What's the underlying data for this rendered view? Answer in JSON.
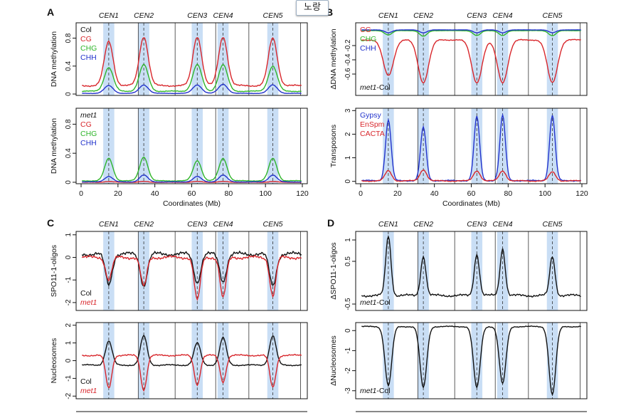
{
  "popup_label": "노랑",
  "colors": {
    "black": "#111111",
    "red": "#d8262b",
    "green": "#2fb52a",
    "blue": "#2233cc",
    "centromere": "#c9def5"
  },
  "centromeres": {
    "labels": [
      "CEN1",
      "CEN2",
      "CEN3",
      "CEN4",
      "CEN5"
    ],
    "positions_mb": [
      15,
      34,
      63,
      77,
      104
    ]
  },
  "chart_data": [
    {
      "id": "A-top",
      "type": "line",
      "panel_letter": "A",
      "ylabel": "DNA methylation",
      "yticks": [
        0,
        0.4,
        0.8
      ],
      "ylim": [
        -0.02,
        1.02
      ],
      "xlim": [
        0,
        120
      ],
      "show_x_tick_labels": false,
      "xlabel": "",
      "legend": [
        {
          "text": "Col",
          "color": "#111111"
        },
        {
          "text": "CG",
          "color": "#d8262b"
        },
        {
          "text": "CHG",
          "color": "#2fb52a"
        },
        {
          "text": "CHH",
          "color": "#2233cc"
        }
      ],
      "series": [
        {
          "name": "CG",
          "color": "#d8262b",
          "base": 0.12,
          "peaks": [
            0.75,
            0.82,
            0.82,
            0.82,
            0.8
          ],
          "width": 2.4,
          "noise": 0.015
        },
        {
          "name": "CHG",
          "color": "#2fb52a",
          "base": 0.04,
          "peaks": [
            0.38,
            0.42,
            0.42,
            0.42,
            0.4
          ],
          "width": 2.4,
          "noise": 0.008
        },
        {
          "name": "CHH",
          "color": "#2233cc",
          "base": 0.01,
          "peaks": [
            0.12,
            0.13,
            0.13,
            0.14,
            0.13
          ],
          "width": 2.4,
          "noise": 0.004
        }
      ]
    },
    {
      "id": "A-bottom",
      "type": "line",
      "ylabel": "DNA methylation",
      "yticks": [
        0,
        0.4,
        0.8
      ],
      "ylim": [
        -0.02,
        1.02
      ],
      "xlim": [
        0,
        120
      ],
      "show_x_tick_labels": true,
      "xticks": [
        0,
        20,
        40,
        60,
        80,
        100,
        120
      ],
      "xlabel": "Coordinates (Mb)",
      "legend": [
        {
          "text": "met1",
          "color": "#111111",
          "italic": true
        },
        {
          "text": "CG",
          "color": "#d8262b"
        },
        {
          "text": "CHG",
          "color": "#2fb52a"
        },
        {
          "text": "CHH",
          "color": "#2233cc"
        }
      ],
      "series": [
        {
          "name": "CG",
          "color": "#d8262b",
          "base": 0.0,
          "peaks": [
            0.01,
            0.01,
            0.01,
            0.01,
            0.01
          ],
          "width": 2.4,
          "noise": 0.003
        },
        {
          "name": "CHG",
          "color": "#2fb52a",
          "base": 0.02,
          "peaks": [
            0.33,
            0.35,
            0.3,
            0.33,
            0.33
          ],
          "width": 2.2,
          "noise": 0.006
        },
        {
          "name": "CHH",
          "color": "#2233cc",
          "base": 0.005,
          "peaks": [
            0.08,
            0.1,
            0.08,
            0.1,
            0.1
          ],
          "width": 2.2,
          "noise": 0.003
        }
      ]
    },
    {
      "id": "B-top",
      "type": "line",
      "panel_letter": "B",
      "ylabel": "ΔDNA methylation",
      "yticks": [
        -0.2,
        -0.4,
        -0.6
      ],
      "ylim": [
        -0.9,
        0.12
      ],
      "xlim": [
        0,
        120
      ],
      "show_x_tick_labels": false,
      "xlabel": "",
      "inner_label": [
        {
          "text": "met1",
          "italic": true
        },
        {
          "text": "-Col",
          "italic": false
        }
      ],
      "legend": [
        {
          "text": "CG",
          "color": "#d8262b"
        },
        {
          "text": "CHG",
          "color": "#2fb52a"
        },
        {
          "text": "CHH",
          "color": "#2233cc"
        }
      ],
      "series": [
        {
          "name": "CG",
          "color": "#d8262b",
          "base": -0.12,
          "peaks": [
            -0.62,
            -0.72,
            -0.72,
            -0.72,
            -0.72
          ],
          "width": 2.8,
          "noise": 0.01
        },
        {
          "name": "CHG",
          "color": "#2fb52a",
          "base": 0.01,
          "peaks": [
            -0.05,
            -0.07,
            -0.06,
            -0.06,
            -0.06
          ],
          "width": 2.0,
          "noise": 0.003
        },
        {
          "name": "CHH",
          "color": "#2233cc",
          "base": 0.02,
          "peaks": [
            -0.02,
            -0.02,
            -0.02,
            -0.02,
            -0.02
          ],
          "width": 2.0,
          "noise": 0.002
        }
      ]
    },
    {
      "id": "B-bottom",
      "type": "line",
      "ylabel": "Transposons",
      "yticks": [
        0,
        1,
        2,
        3
      ],
      "ylim": [
        -0.1,
        3.1
      ],
      "xlim": [
        0,
        120
      ],
      "show_x_tick_labels": true,
      "xticks": [
        0,
        20,
        40,
        60,
        80,
        100,
        120
      ],
      "xlabel": "Coordinates (Mb)",
      "legend": [
        {
          "text": "Gypsy",
          "color": "#2233cc"
        },
        {
          "text": "EnSpm",
          "color": "#d8262b"
        },
        {
          "text": "CACTA",
          "color": "#d8262b"
        }
      ],
      "series": [
        {
          "name": "Gypsy",
          "color": "#2233cc",
          "base": 0.03,
          "peaks": [
            2.6,
            2.3,
            2.75,
            2.8,
            2.8
          ],
          "width": 1.5,
          "noise": 0.03
        },
        {
          "name": "EnSpm",
          "color": "#d8262b",
          "base": 0.02,
          "peaks": [
            0.45,
            0.5,
            0.45,
            0.45,
            0.4
          ],
          "width": 1.8,
          "noise": 0.03
        }
      ]
    },
    {
      "id": "C-top",
      "type": "line",
      "panel_letter": "C",
      "ylabel": "SPO11-1-oligos",
      "yticks": [
        1,
        0,
        -1,
        -2
      ],
      "ylim": [
        -2.35,
        1.15
      ],
      "xlim": [
        0,
        120
      ],
      "show_x_tick_labels": false,
      "xlabel": "",
      "legend": [
        {
          "text": "Col",
          "color": "#111111"
        },
        {
          "text": "met1",
          "color": "#d8262b",
          "italic": true
        }
      ],
      "series": [
        {
          "name": "Col",
          "color": "#111111",
          "base": 0.15,
          "peaks": [
            -1.2,
            -1.25,
            -1.1,
            -1.05,
            -1.25
          ],
          "width": 1.8,
          "noise": 0.12
        },
        {
          "name": "met1",
          "color": "#d8262b",
          "base": 0.0,
          "peaks": [
            -1.0,
            -1.3,
            -1.9,
            -1.8,
            -1.7
          ],
          "width": 1.6,
          "noise": 0.1
        }
      ]
    },
    {
      "id": "C-bottom",
      "type": "line",
      "ylabel": "Nucleosomes",
      "yticks": [
        2,
        1,
        0,
        -1,
        -2
      ],
      "ylim": [
        -2.15,
        2.15
      ],
      "xlim": [
        0,
        120
      ],
      "show_x_tick_labels": false,
      "xlabel": "",
      "legend": [
        {
          "text": "Col",
          "color": "#111111"
        },
        {
          "text": "met1",
          "color": "#d8262b",
          "italic": true
        }
      ],
      "series": [
        {
          "name": "Col",
          "color": "#111111",
          "base": -0.25,
          "peaks": [
            1.1,
            1.4,
            1.0,
            1.3,
            1.4
          ],
          "width": 1.8,
          "noise": 0.05
        },
        {
          "name": "met1",
          "color": "#d8262b",
          "base": 0.3,
          "peaks": [
            -1.55,
            -1.65,
            -1.35,
            -1.2,
            -1.5
          ],
          "width": 1.6,
          "noise": 0.06
        }
      ]
    },
    {
      "id": "D-top",
      "type": "line",
      "panel_letter": "D",
      "ylabel": "ΔSPO11-1-oligos",
      "yticks": [
        1.0,
        0.5,
        -0.5
      ],
      "ylim": [
        -0.65,
        1.2
      ],
      "xlim": [
        0,
        120
      ],
      "show_x_tick_labels": false,
      "xlabel": "",
      "inner_label": [
        {
          "text": "met1",
          "italic": true
        },
        {
          "text": "-Col",
          "italic": false
        }
      ],
      "series": [
        {
          "name": "met1-Col",
          "color": "#111111",
          "base": -0.3,
          "peaks": [
            1.1,
            0.62,
            0.67,
            0.8,
            0.62
          ],
          "width": 1.4,
          "noise": 0.04
        }
      ]
    },
    {
      "id": "D-bottom",
      "type": "line",
      "ylabel": "ΔNucleosomes",
      "yticks": [
        0,
        -1,
        -2,
        -3
      ],
      "ylim": [
        -3.4,
        0.4
      ],
      "xlim": [
        0,
        120
      ],
      "show_x_tick_labels": false,
      "xlabel": "",
      "inner_label": [
        {
          "text": "met1",
          "italic": true
        },
        {
          "text": "-Col",
          "italic": false
        }
      ],
      "series": [
        {
          "name": "met1-Col",
          "color": "#111111",
          "base": 0.2,
          "peaks": [
            -2.75,
            -2.85,
            -2.85,
            -2.65,
            -3.2
          ],
          "width": 1.8,
          "noise": 0.035
        }
      ]
    }
  ]
}
